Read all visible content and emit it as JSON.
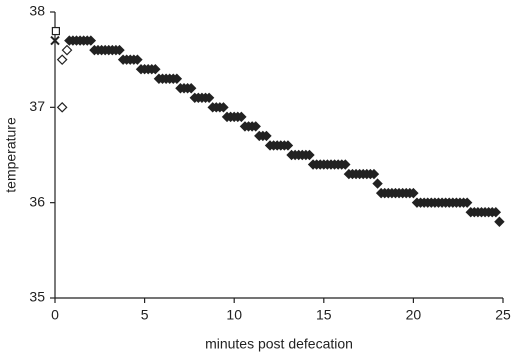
{
  "chart_data": {
    "type": "scatter",
    "xlabel": "minutes post defecation",
    "ylabel": "temperature",
    "xlim": [
      0,
      25
    ],
    "ylim": [
      35,
      38
    ],
    "xticks": [
      0,
      5,
      10,
      15,
      20,
      25
    ],
    "yticks": [
      35,
      36,
      37,
      38
    ],
    "grid": false,
    "series": [
      {
        "color": "#222222",
        "marker": "diamond-filled",
        "x": [
          0.8,
          1,
          1.2,
          1.4,
          1.6,
          1.8,
          2,
          2.2,
          2.4,
          2.6,
          2.8,
          3,
          3.2,
          3.4,
          3.6,
          3.8,
          4,
          4.2,
          4.4,
          4.6,
          4.8,
          5,
          5.2,
          5.4,
          5.6,
          5.8,
          6,
          6.2,
          6.4,
          6.6,
          6.8,
          7,
          7.2,
          7.4,
          7.6,
          7.8,
          8,
          8.2,
          8.4,
          8.6,
          8.8,
          9,
          9.2,
          9.4,
          9.6,
          9.8,
          10,
          10.2,
          10.4,
          10.6,
          10.8,
          11,
          11.2,
          11.4,
          11.6,
          11.8,
          12,
          12.2,
          12.4,
          12.6,
          12.8,
          13,
          13.2,
          13.4,
          13.6,
          13.8,
          14,
          14.2,
          14.4,
          14.6,
          14.8,
          15,
          15.2,
          15.4,
          15.6,
          15.8,
          16,
          16.2,
          16.4,
          16.6,
          16.8,
          17,
          17.2,
          17.4,
          17.6,
          17.8,
          18,
          18.2,
          18.4,
          18.6,
          18.8,
          19,
          19.2,
          19.4,
          19.6,
          19.8,
          20,
          20.2,
          20.4,
          20.6,
          20.8,
          21,
          21.2,
          21.4,
          21.6,
          21.8,
          22,
          22.2,
          22.4,
          22.6,
          22.8,
          23,
          23.2,
          23.4,
          23.6,
          23.8,
          24,
          24.2,
          24.4,
          24.6,
          24.8
        ],
        "values": [
          37.7,
          37.7,
          37.7,
          37.7,
          37.7,
          37.7,
          37.7,
          37.6,
          37.6,
          37.6,
          37.6,
          37.6,
          37.6,
          37.6,
          37.6,
          37.5,
          37.5,
          37.5,
          37.5,
          37.5,
          37.4,
          37.4,
          37.4,
          37.4,
          37.4,
          37.3,
          37.3,
          37.3,
          37.3,
          37.3,
          37.3,
          37.2,
          37.2,
          37.2,
          37.2,
          37.1,
          37.1,
          37.1,
          37.1,
          37.1,
          37.0,
          37.0,
          37.0,
          37.0,
          36.9,
          36.9,
          36.9,
          36.9,
          36.9,
          36.8,
          36.8,
          36.8,
          36.8,
          36.7,
          36.7,
          36.7,
          36.6,
          36.6,
          36.6,
          36.6,
          36.6,
          36.6,
          36.5,
          36.5,
          36.5,
          36.5,
          36.5,
          36.5,
          36.4,
          36.4,
          36.4,
          36.4,
          36.4,
          36.4,
          36.4,
          36.4,
          36.4,
          36.4,
          36.3,
          36.3,
          36.3,
          36.3,
          36.3,
          36.3,
          36.3,
          36.3,
          36.2,
          36.1,
          36.1,
          36.1,
          36.1,
          36.1,
          36.1,
          36.1,
          36.1,
          36.1,
          36.1,
          36.0,
          36.0,
          36.0,
          36.0,
          36.0,
          36.0,
          36.0,
          36.0,
          36.0,
          36.0,
          36.0,
          36.0,
          36.0,
          36.0,
          36.0,
          35.9,
          35.9,
          35.9,
          35.9,
          35.9,
          35.9,
          35.9,
          35.9,
          35.8
        ]
      },
      {
        "color": "#222222",
        "marker": "square-open",
        "x": [
          0.05
        ],
        "values": [
          37.8
        ]
      },
      {
        "color": "#222222",
        "marker": "cross",
        "x": [
          0
        ],
        "values": [
          37.7
        ]
      },
      {
        "color": "#222222",
        "marker": "diamond-open",
        "x": [
          0.4,
          0.4,
          0.67
        ],
        "values": [
          37.0,
          37.5,
          37.6
        ]
      }
    ]
  }
}
